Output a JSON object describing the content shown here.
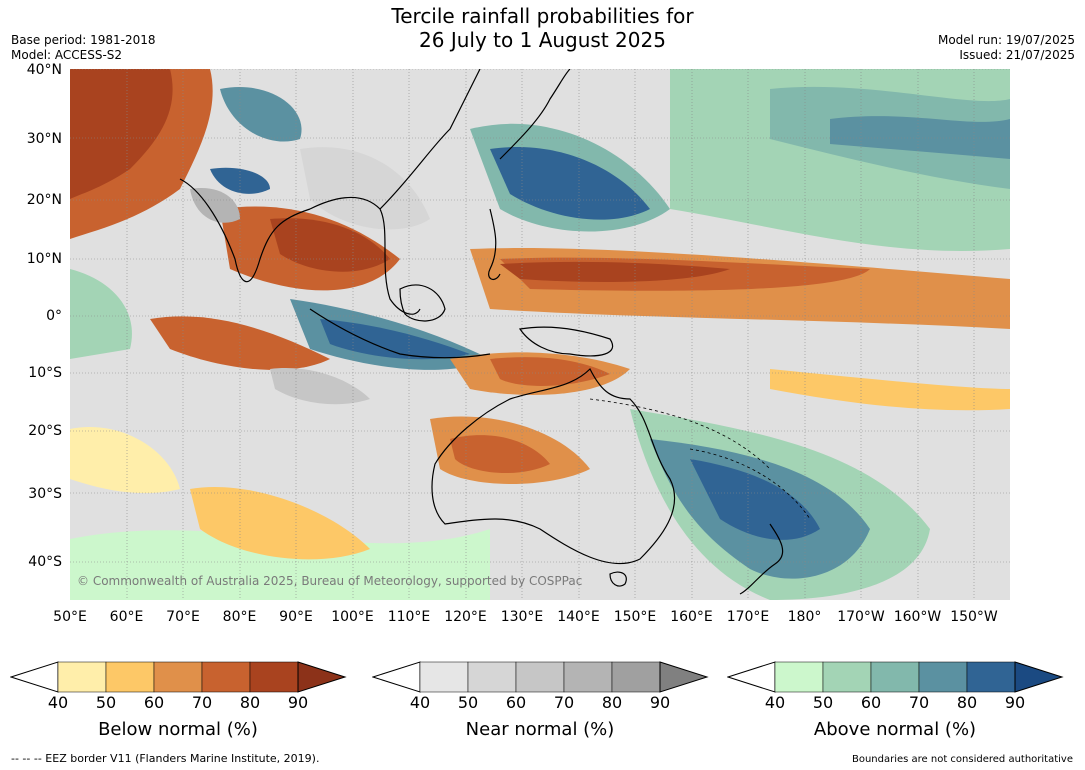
{
  "header": {
    "title_line1": "Tercile rainfall probabilities for",
    "title_line2": "26 July to 1 August 2025",
    "base_period": "Base period: 1981-2018",
    "model": "Model: ACCESS-S2",
    "model_run": "Model run: 19/07/2025",
    "issued": "Issued: 21/07/2025"
  },
  "map": {
    "lat_labels": [
      "40°N",
      "30°N",
      "20°N",
      "10°N",
      "0°",
      "10°S",
      "20°S",
      "30°S",
      "40°S"
    ],
    "lon_labels": [
      "50°E",
      "60°E",
      "70°E",
      "80°E",
      "90°E",
      "100°E",
      "110°E",
      "120°E",
      "130°E",
      "140°E",
      "150°E",
      "160°E",
      "170°E",
      "180°",
      "170°W",
      "160°W",
      "150°W"
    ],
    "copyright": "© Commonwealth of Australia 2025, Bureau of Meteorology, supported by COSPPac"
  },
  "colorbars": [
    {
      "label": "Below normal (%)",
      "ticks": [
        "40",
        "50",
        "60",
        "70",
        "80",
        "90"
      ],
      "colors": [
        "#ffeeaa",
        "#fdc867",
        "#e0904a",
        "#c8622f",
        "#a9431f"
      ],
      "extend_color": "#8c3219"
    },
    {
      "label": "Near normal (%)",
      "ticks": [
        "40",
        "50",
        "60",
        "70",
        "80",
        "90"
      ],
      "colors": [
        "#e6e6e6",
        "#d6d6d6",
        "#c6c6c6",
        "#b4b4b4",
        "#a0a0a0"
      ],
      "extend_color": "#808080"
    },
    {
      "label": "Above normal (%)",
      "ticks": [
        "40",
        "50",
        "60",
        "70",
        "80",
        "90"
      ],
      "colors": [
        "#ccf7cc",
        "#a3d4b5",
        "#82b8ac",
        "#5b91a1",
        "#306494"
      ],
      "extend_color": "#1b4a82"
    }
  ],
  "footer": {
    "eez_note": "--  --  -- EEZ border V11 (Flanders Marine Institute, 2019).",
    "boundaries_note": "Boundaries are not considered authoritative"
  }
}
